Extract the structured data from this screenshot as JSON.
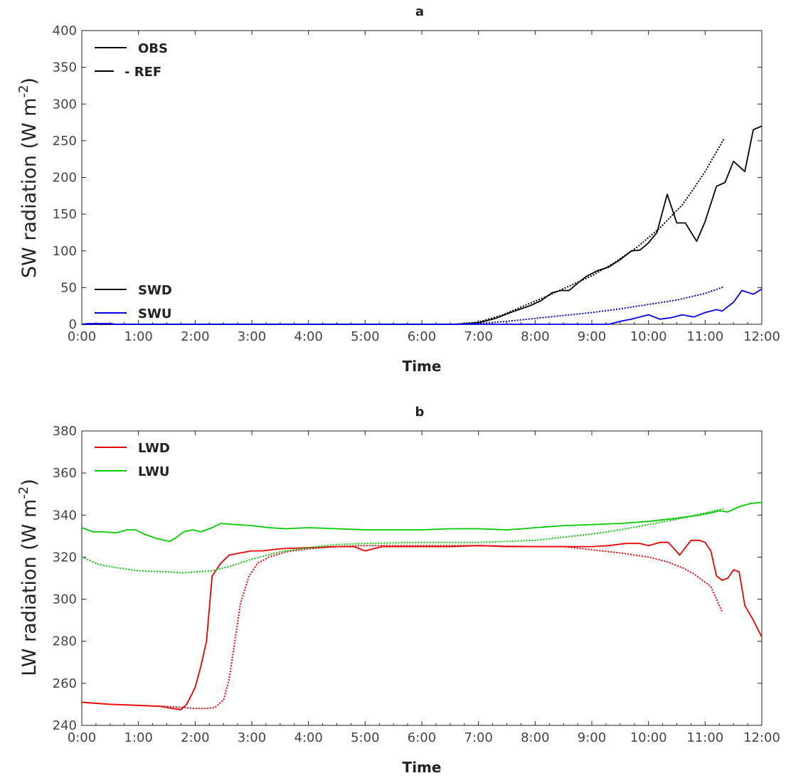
{
  "chart_data": [
    {
      "type": "line",
      "title": "a",
      "xlabel": "Time",
      "ylabel_main": "SW radiation (W m",
      "ylabel_sup": "-2",
      "ylabel_close": ")",
      "x_ticks": [
        "0:00",
        "1:00",
        "2:00",
        "3:00",
        "4:00",
        "5:00",
        "6:00",
        "7:00",
        "8:00",
        "9:00",
        "10:00",
        "11:00",
        "12:00"
      ],
      "xlim": [
        0,
        12
      ],
      "ylim": [
        0,
        400
      ],
      "y_ticks": [
        0,
        50,
        100,
        150,
        200,
        250,
        300,
        350,
        400
      ],
      "legend_style": [
        {
          "label": "OBS",
          "dash": "solid"
        },
        {
          "label": "- REF",
          "dash": "dashed"
        }
      ],
      "legend_series": [
        {
          "label": "SWD",
          "color": "#000000"
        },
        {
          "label": "SWU",
          "color": "#0000ee"
        }
      ],
      "series": [
        {
          "name": "SWD",
          "style": "OBS",
          "color": "#000000",
          "x": [
            0,
            6.6,
            7.0,
            7.3,
            7.6,
            7.9,
            8.1,
            8.3,
            8.45,
            8.6,
            8.75,
            8.9,
            9.1,
            9.3,
            9.5,
            9.7,
            9.85,
            10.0,
            10.15,
            10.33,
            10.5,
            10.65,
            10.85,
            11.0,
            11.2,
            11.35,
            11.5,
            11.7,
            11.85,
            12.0
          ],
          "y": [
            0,
            0,
            2,
            8,
            17,
            25,
            32,
            43,
            46,
            46,
            56,
            65,
            73,
            78,
            88,
            100,
            101,
            111,
            125,
            177,
            138,
            138,
            113,
            140,
            188,
            193,
            222,
            208,
            265,
            270
          ]
        },
        {
          "name": "SWD",
          "style": "REF",
          "color": "#000000",
          "x": [
            0,
            6.6,
            7.0,
            7.4,
            7.8,
            8.2,
            8.6,
            9.0,
            9.4,
            9.8,
            10.2,
            10.6,
            10.8,
            11.0,
            11.2,
            11.33
          ],
          "y": [
            0,
            0,
            3,
            12,
            25,
            38,
            52,
            66,
            84,
            105,
            131,
            163,
            185,
            208,
            235,
            252
          ]
        },
        {
          "name": "SWU",
          "style": "OBS",
          "color": "#0000ee",
          "x": [
            0,
            0.1,
            0.3,
            0.5,
            0.6,
            9.3,
            9.5,
            9.7,
            9.9,
            10.0,
            10.2,
            10.4,
            10.6,
            10.8,
            11.0,
            11.2,
            11.3,
            11.5,
            11.65,
            11.85,
            12.0
          ],
          "y": [
            0,
            1,
            1,
            1,
            0,
            0,
            4,
            7,
            11,
            13,
            7,
            9,
            13,
            10,
            16,
            20,
            18,
            30,
            46,
            41,
            48
          ]
        },
        {
          "name": "SWU",
          "style": "REF",
          "color": "#0000ee",
          "x": [
            0,
            6.6,
            7.0,
            7.5,
            8.0,
            8.5,
            9.0,
            9.5,
            10.0,
            10.5,
            11.0,
            11.33
          ],
          "y": [
            0,
            0,
            1,
            4,
            8,
            12,
            16,
            21,
            27,
            33,
            42,
            51
          ]
        }
      ]
    },
    {
      "type": "line",
      "title": "b",
      "xlabel": "Time",
      "ylabel_main": "LW radiation (W m",
      "ylabel_sup": "-2",
      "ylabel_close": ")",
      "x_ticks": [
        "0:00",
        "1:00",
        "2:00",
        "3:00",
        "4:00",
        "5:00",
        "6:00",
        "7:00",
        "8:00",
        "9:00",
        "10:00",
        "11:00",
        "12:00"
      ],
      "xlim": [
        0,
        12
      ],
      "ylim": [
        240,
        380
      ],
      "y_ticks": [
        240,
        260,
        280,
        300,
        320,
        340,
        360,
        380
      ],
      "legend_series": [
        {
          "label": "LWD",
          "color": "#ee0000"
        },
        {
          "label": "LWU",
          "color": "#00cc00"
        }
      ],
      "series": [
        {
          "name": "LWD",
          "style": "OBS",
          "color": "#ee0000",
          "x": [
            0,
            0.5,
            1.0,
            1.4,
            1.6,
            1.75,
            1.85,
            2.0,
            2.1,
            2.2,
            2.3,
            2.45,
            2.6,
            2.8,
            3.0,
            3.2,
            3.5,
            4.0,
            4.5,
            4.8,
            5.0,
            5.3,
            5.6,
            6.0,
            6.5,
            7.0,
            7.5,
            8.0,
            8.5,
            9.0,
            9.3,
            9.6,
            9.85,
            10.0,
            10.2,
            10.35,
            10.55,
            10.75,
            10.9,
            11.0,
            11.1,
            11.2,
            11.3,
            11.4,
            11.5,
            11.6,
            11.7,
            11.85,
            12.0
          ],
          "y": [
            251,
            250,
            249.5,
            249,
            248,
            247.5,
            250,
            258,
            268,
            280,
            311,
            317,
            321,
            322,
            323,
            323,
            324,
            324.5,
            325,
            325,
            323,
            325,
            325,
            325,
            325,
            325.5,
            325,
            325,
            325,
            325,
            325.5,
            326.5,
            326.5,
            325.5,
            327,
            327,
            321,
            328,
            328,
            327,
            323,
            311,
            309,
            310,
            314,
            313,
            297,
            290,
            282
          ]
        },
        {
          "name": "LWD",
          "style": "REF",
          "color": "#ee0000",
          "x": [
            0,
            0.5,
            1.0,
            1.5,
            1.8,
            2.0,
            2.2,
            2.35,
            2.5,
            2.6,
            2.7,
            2.8,
            2.95,
            3.1,
            3.3,
            3.6,
            4.0,
            4.5,
            5.0,
            6.0,
            7.0,
            8.0,
            8.5,
            9.0,
            9.5,
            10.0,
            10.3,
            10.6,
            10.8,
            11.0,
            11.1,
            11.2,
            11.3
          ],
          "y": [
            251,
            250,
            249.5,
            249,
            248.5,
            248,
            248,
            248.5,
            252,
            262,
            280,
            298,
            311,
            317,
            320,
            322.5,
            324,
            325,
            325.5,
            325.5,
            325.5,
            325,
            325,
            323.5,
            322,
            320,
            318,
            315,
            312,
            308,
            306,
            300,
            294
          ]
        },
        {
          "name": "LWU",
          "style": "OBS",
          "color": "#00cc00",
          "x": [
            0,
            0.2,
            0.4,
            0.6,
            0.8,
            0.95,
            1.1,
            1.3,
            1.45,
            1.55,
            1.65,
            1.8,
            1.95,
            2.1,
            2.3,
            2.45,
            2.7,
            3.0,
            3.3,
            3.6,
            4.0,
            4.5,
            5.0,
            5.5,
            6.0,
            6.5,
            7.0,
            7.5,
            7.8,
            8.0,
            8.5,
            9.0,
            9.5,
            10.0,
            10.5,
            10.9,
            11.1,
            11.25,
            11.4,
            11.6,
            11.8,
            12.0
          ],
          "y": [
            334,
            332,
            332,
            331.5,
            333,
            333,
            331,
            329,
            328,
            327.5,
            329,
            332,
            333,
            332,
            334,
            336,
            335.5,
            335,
            334,
            333.5,
            334,
            333.5,
            333,
            333,
            333,
            333.5,
            333.5,
            333,
            333.5,
            334,
            335,
            335.5,
            336,
            337,
            338.5,
            340,
            341,
            342,
            341.5,
            344,
            345.5,
            346
          ]
        },
        {
          "name": "LWU",
          "style": "REF",
          "color": "#00cc00",
          "x": [
            0,
            0.3,
            0.6,
            1.0,
            1.5,
            1.8,
            2.0,
            2.3,
            2.6,
            3.0,
            3.5,
            4.0,
            4.5,
            5.0,
            6.0,
            7.0,
            7.5,
            8.0,
            8.5,
            9.0,
            9.5,
            10.0,
            10.5,
            11.0,
            11.33
          ],
          "y": [
            320,
            316.5,
            315,
            313.5,
            313,
            312.5,
            313,
            313.5,
            315.5,
            319,
            322.5,
            324.5,
            326,
            326.5,
            327,
            327,
            327.5,
            328,
            329.5,
            331,
            333,
            335.5,
            338,
            341,
            343
          ]
        }
      ]
    }
  ]
}
